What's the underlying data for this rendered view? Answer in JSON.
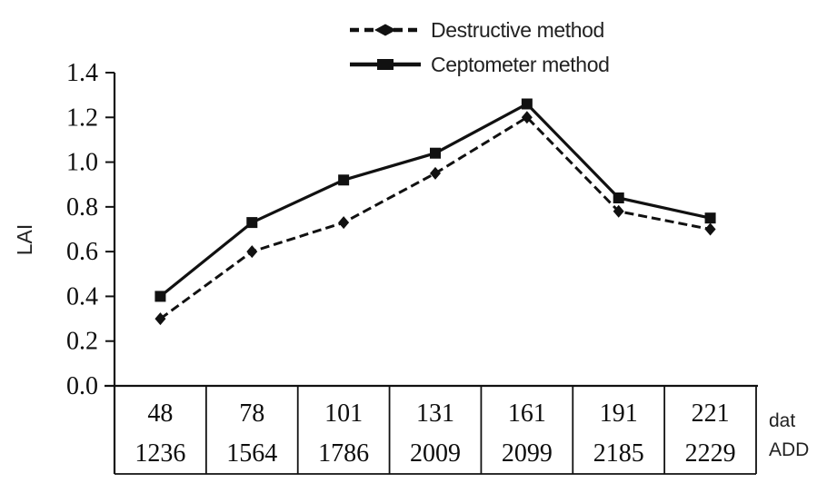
{
  "accent_color": "#111111",
  "text_color": "#222222",
  "background_color": "#ffffff",
  "chart_data": {
    "type": "line",
    "title": "",
    "ylabel": "LAI",
    "ylim": [
      0.0,
      1.4
    ],
    "ytick_labels": [
      "0.0",
      "0.2",
      "0.4",
      "0.6",
      "0.8",
      "1.0",
      "1.2",
      "1.4"
    ],
    "grid": false,
    "legend_position": "top-center",
    "x_axis_rows": [
      {
        "label": "dat",
        "values": [
          "48",
          "78",
          "101",
          "131",
          "161",
          "191",
          "221"
        ]
      },
      {
        "label": "ADD",
        "values": [
          "1236",
          "1564",
          "1786",
          "2009",
          "2099",
          "2185",
          "2229"
        ]
      }
    ],
    "series": [
      {
        "name": "Destructive method",
        "line_style": "dashed",
        "marker": "diamond",
        "color": "#111111",
        "values": [
          0.3,
          0.6,
          0.73,
          0.95,
          1.2,
          0.78,
          0.7
        ]
      },
      {
        "name": "Ceptometer method",
        "line_style": "solid",
        "marker": "square",
        "color": "#111111",
        "values": [
          0.4,
          0.73,
          0.92,
          1.04,
          1.26,
          0.84,
          0.75
        ]
      }
    ]
  },
  "legend": {
    "items": [
      {
        "icon": "dashed-line-diamond-marker-icon"
      },
      {
        "icon": "solid-line-square-marker-icon"
      }
    ]
  }
}
